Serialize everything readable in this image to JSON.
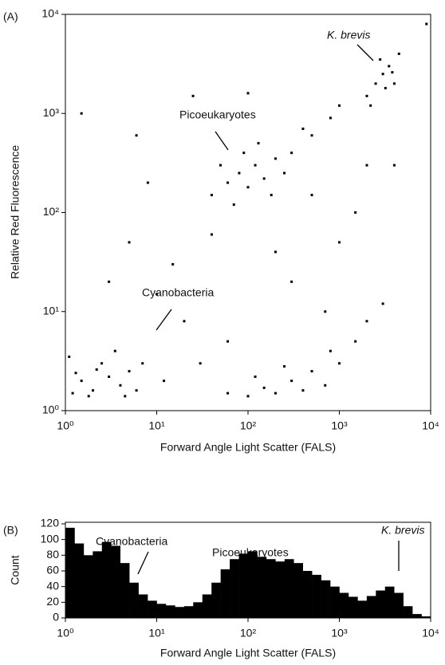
{
  "chart_data": [
    {
      "type": "scatter",
      "panel": "(A)",
      "xlabel": "Forward Angle Light Scatter (FALS)",
      "ylabel": "Relative Red Fluorescence",
      "xscale": "log",
      "yscale": "log",
      "color": "#000000",
      "xlim": [
        1,
        10000
      ],
      "ylim": [
        1,
        10000
      ],
      "xticks": [
        {
          "value": 1,
          "label": "10⁰"
        },
        {
          "value": 10,
          "label": "10¹"
        },
        {
          "value": 100,
          "label": "10²"
        },
        {
          "value": 1000,
          "label": "10³"
        },
        {
          "value": 10000,
          "label": "10⁴"
        }
      ],
      "yticks": [
        {
          "value": 1,
          "label": "10⁰"
        },
        {
          "value": 10,
          "label": "10¹"
        },
        {
          "value": 100,
          "label": "10²"
        },
        {
          "value": 1000,
          "label": "10³"
        },
        {
          "value": 10000,
          "label": "10⁴"
        }
      ],
      "annotations": [
        "K. brevis",
        "Picoeukaryotes",
        "Cyanobacteria"
      ],
      "x": [
        1.2,
        1.5,
        2,
        2.5,
        3,
        1.1,
        4,
        5,
        6,
        3.5,
        2.2,
        1.8,
        7,
        1.3,
        4.5,
        60,
        100,
        150,
        200,
        300,
        400,
        500,
        700,
        1000,
        1500,
        2000,
        250,
        800,
        120,
        3000,
        40,
        60,
        80,
        100,
        120,
        150,
        200,
        300,
        500,
        70,
        90,
        250,
        400,
        800,
        1000,
        180,
        50,
        130,
        2000,
        2500,
        3000,
        3500,
        4000,
        3200,
        2800,
        4500,
        2200,
        3800,
        1.5,
        8,
        5,
        15,
        20,
        30,
        40,
        10,
        300,
        1000,
        500,
        2000,
        25,
        100,
        3,
        6,
        12,
        700,
        1500,
        200,
        4000,
        60,
        9000
      ],
      "y": [
        1.5,
        2,
        1.6,
        3,
        2.2,
        3.5,
        1.8,
        2.5,
        1.6,
        4,
        2.6,
        1.4,
        3,
        2.4,
        1.4,
        1.5,
        1.4,
        1.7,
        1.5,
        2,
        1.6,
        2.5,
        1.8,
        3,
        5,
        8,
        2.8,
        4,
        2.2,
        12,
        150,
        200,
        250,
        180,
        300,
        220,
        350,
        400,
        600,
        120,
        400,
        250,
        700,
        900,
        1200,
        150,
        300,
        500,
        1500,
        2000,
        2500,
        3000,
        2000,
        1800,
        3500,
        4000,
        1200,
        2600,
        1000,
        200,
        50,
        30,
        8,
        3,
        60,
        15,
        20,
        50,
        150,
        300,
        1500,
        1600,
        20,
        600,
        2,
        10,
        100,
        40,
        300,
        5,
        8000
      ]
    },
    {
      "type": "histogram",
      "panel": "(B)",
      "xlabel": "Forward Angle Light Scatter (FALS)",
      "ylabel": "Count",
      "xscale": "log",
      "color": "#000000",
      "xlim": [
        1,
        10000
      ],
      "ylim": [
        0,
        122
      ],
      "xticks": [
        {
          "value": 1,
          "label": "10⁰"
        },
        {
          "value": 10,
          "label": "10¹"
        },
        {
          "value": 100,
          "label": "10²"
        },
        {
          "value": 1000,
          "label": "10³"
        },
        {
          "value": 10000,
          "label": "10⁴"
        }
      ],
      "yticks": [
        0,
        20,
        40,
        60,
        80,
        100,
        120
      ],
      "annotations": [
        "Cyanobacteria",
        "Picoeukaryotes",
        "K. brevis"
      ],
      "bins": [
        1,
        1.259,
        1.585,
        1.995,
        2.512,
        3.162,
        3.981,
        5.012,
        6.31,
        7.943,
        10,
        12.59,
        15.85,
        19.95,
        25.12,
        31.62,
        39.81,
        50.12,
        63.1,
        79.43,
        100,
        125.9,
        158.5,
        199.5,
        251.2,
        316.2,
        398.1,
        501.2,
        631,
        794.3,
        1000,
        1259,
        1585,
        1995,
        2512,
        3162,
        3981,
        5012,
        6310,
        7943,
        10000
      ],
      "values": [
        115,
        95,
        80,
        85,
        97,
        92,
        70,
        45,
        30,
        22,
        18,
        16,
        14,
        15,
        20,
        30,
        45,
        62,
        75,
        82,
        85,
        78,
        75,
        72,
        75,
        70,
        60,
        55,
        48,
        40,
        32,
        27,
        22,
        28,
        35,
        40,
        32,
        15,
        5,
        2
      ]
    }
  ]
}
